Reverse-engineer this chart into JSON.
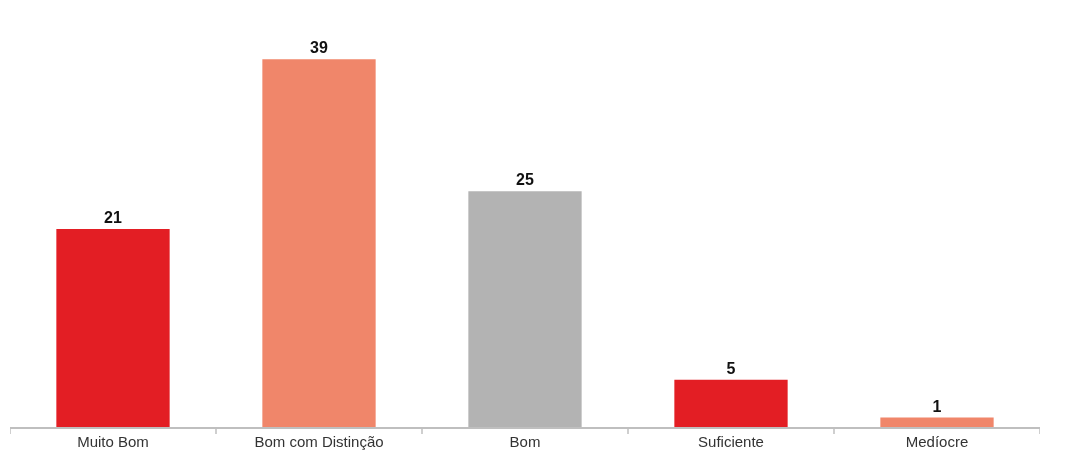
{
  "chart_data": {
    "type": "bar",
    "categories": [
      "Muito Bom",
      "Bom com Distinção",
      "Bom",
      "Suficiente",
      "Medíocre"
    ],
    "values": [
      21,
      39,
      25,
      5,
      1
    ],
    "colors": [
      "#e31e24",
      "#f0866a",
      "#b3b3b3",
      "#e31e24",
      "#f0866a"
    ],
    "data_labels": true
  }
}
